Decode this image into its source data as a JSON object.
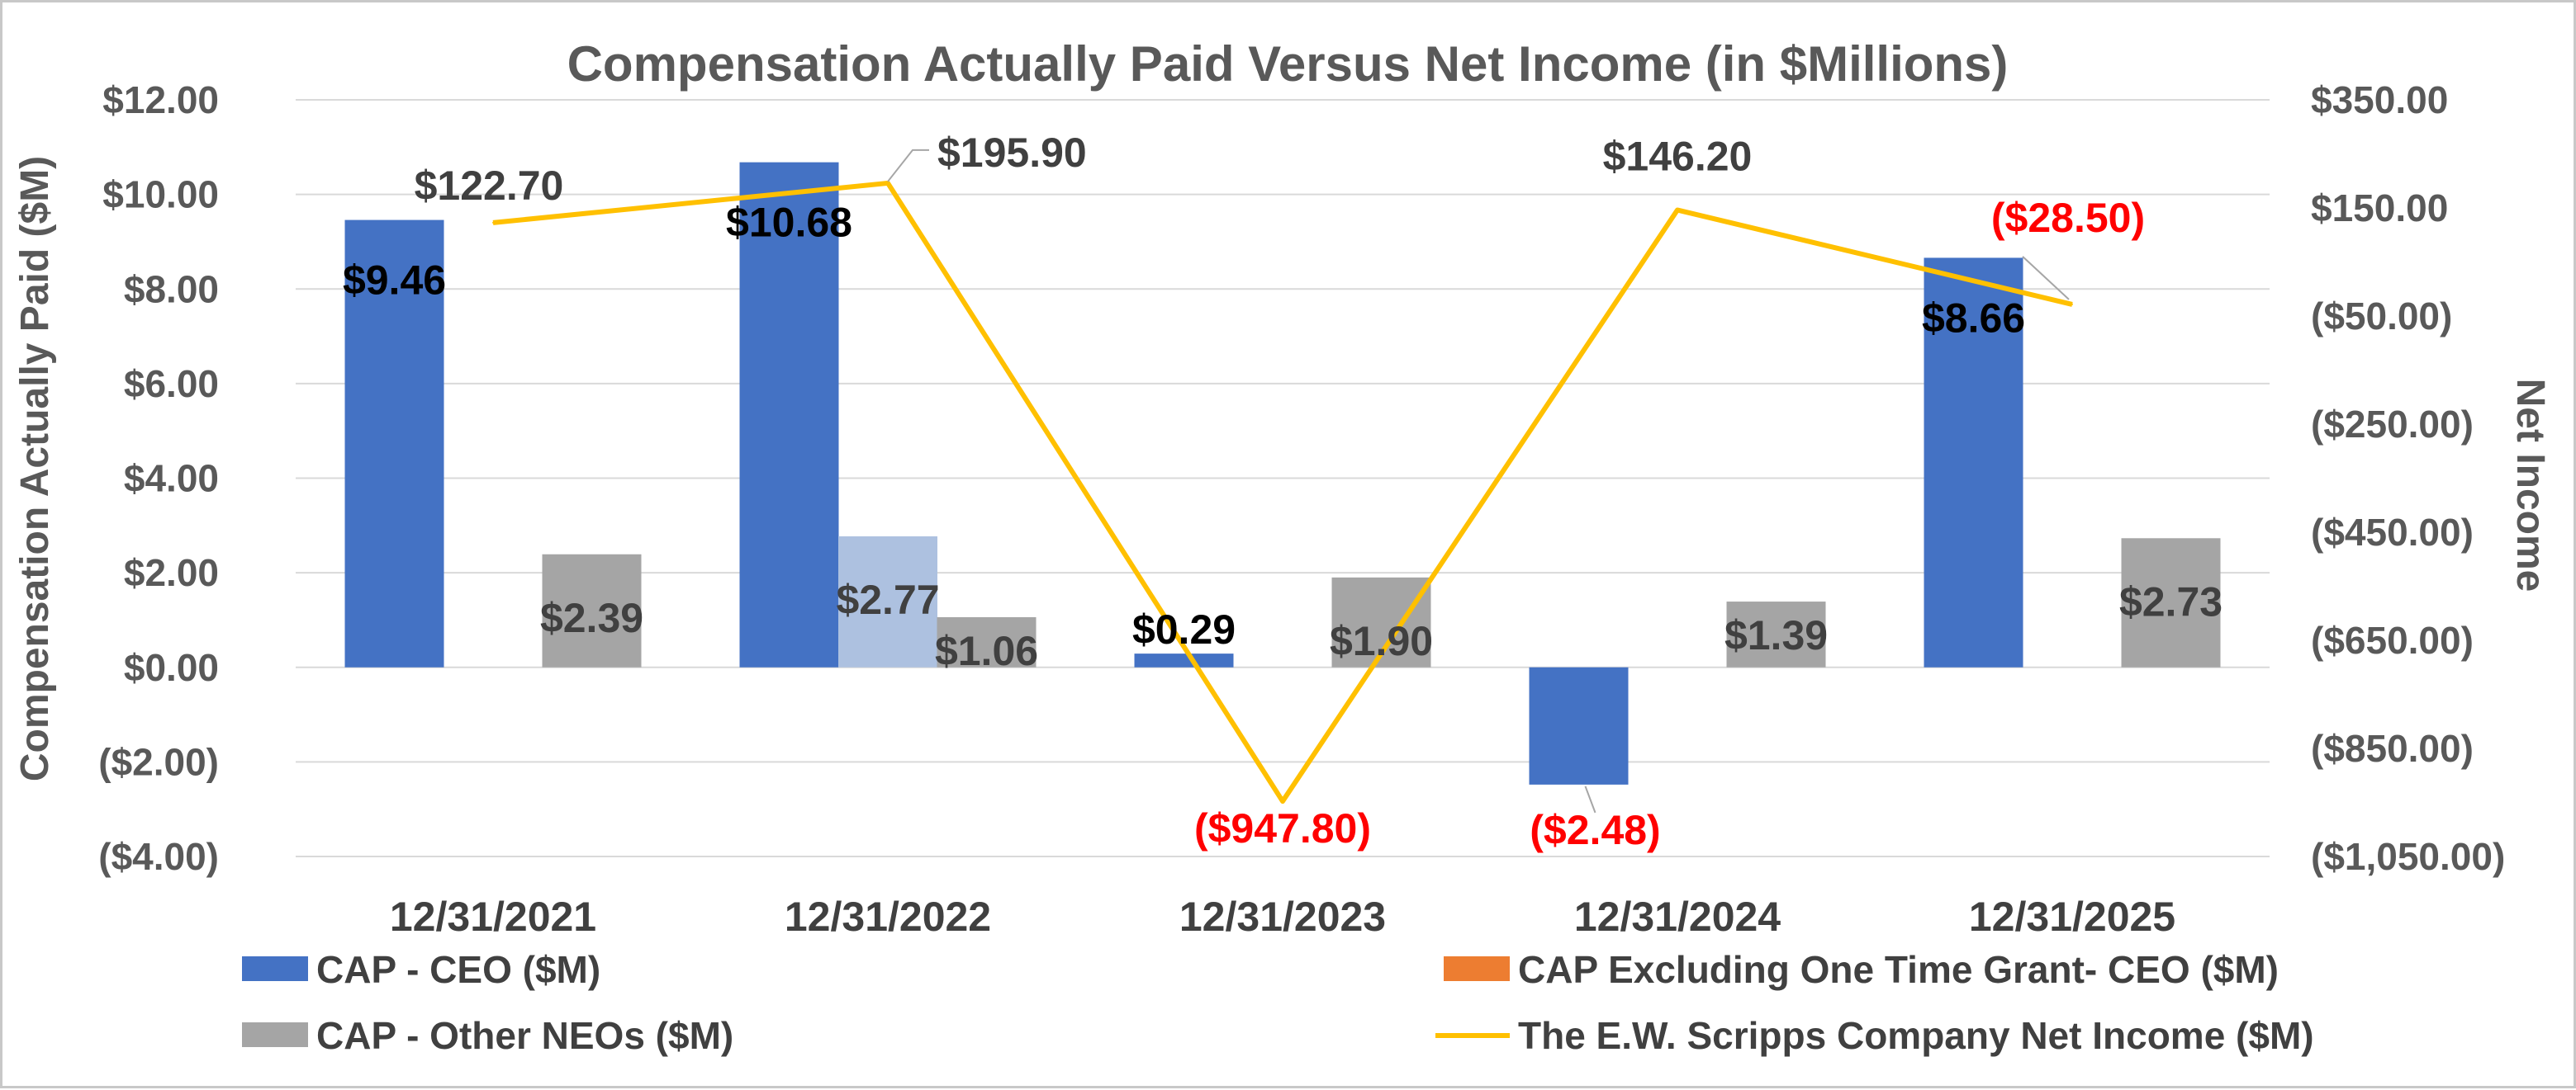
{
  "chart_data": {
    "type": "bar",
    "title": "Compensation Actually Paid Versus Net Income (in $Millions)",
    "ylabel": "Compensation Actually Paid ($M)",
    "y2label": "Net Income",
    "ylim": [
      -4,
      12
    ],
    "y2lim": [
      -1050,
      350
    ],
    "yticks": [
      12,
      10,
      8,
      6,
      4,
      2,
      0,
      -2,
      -4
    ],
    "ytick_labels": [
      "$12.00",
      "$10.00",
      "$8.00",
      "$6.00",
      "$4.00",
      "$2.00",
      "$0.00",
      "($2.00)",
      "($4.00)"
    ],
    "y2ticks": [
      350,
      150,
      -50,
      -250,
      -450,
      -650,
      -850,
      -1050
    ],
    "y2tick_labels": [
      "$350.00",
      "$150.00",
      "($50.00)",
      "($250.00)",
      "($450.00)",
      "($650.00)",
      "($850.00)",
      "($1,050.00)"
    ],
    "categories": [
      "12/31/2021",
      "12/31/2022",
      "12/31/2023",
      "12/31/2024",
      "12/31/2025"
    ],
    "grid": true,
    "legend_position": "bottom",
    "series": [
      {
        "name": "CAP - CEO ($M)",
        "kind": "bar",
        "axis": "left",
        "color": "#4472c4",
        "values": [
          9.46,
          10.68,
          0.29,
          -2.48,
          8.66
        ],
        "labels": [
          "$9.46",
          "$10.68",
          "$0.29",
          "($2.48)",
          "$8.66"
        ],
        "label_colors": [
          "#000000",
          "#000000",
          "#000000",
          "#ff0000",
          "#000000"
        ]
      },
      {
        "name": "CAP Excluding One Time Grant- CEO ($M)",
        "kind": "bar",
        "axis": "left",
        "color": "#ed7d31",
        "bar_color_override": "#adc1e0",
        "values": [
          null,
          2.77,
          null,
          null,
          null
        ],
        "labels": [
          "",
          "$2.77",
          "",
          "",
          ""
        ],
        "label_colors": [
          "#404040",
          "#404040",
          "#404040",
          "#404040",
          "#404040"
        ]
      },
      {
        "name": "CAP - Other NEOs ($M)",
        "kind": "bar",
        "axis": "left",
        "color": "#a5a5a5",
        "values": [
          2.39,
          1.06,
          1.9,
          1.39,
          2.73
        ],
        "labels": [
          "$2.39",
          "$1.06",
          "$1.90",
          "$1.39",
          "$2.73"
        ],
        "label_colors": [
          "#404040",
          "#404040",
          "#404040",
          "#404040",
          "#404040"
        ]
      },
      {
        "name": "The E.W. Scripps Company Net Income ($M)",
        "kind": "line",
        "axis": "right",
        "color": "#ffc000",
        "values": [
          122.7,
          195.9,
          -947.8,
          146.2,
          -28.5
        ],
        "labels": [
          "$122.70",
          "$195.90",
          "($947.80)",
          "$146.20",
          "($28.50)"
        ],
        "label_colors": [
          "#404040",
          "#404040",
          "#ff0000",
          "#404040",
          "#ff0000"
        ]
      }
    ]
  }
}
